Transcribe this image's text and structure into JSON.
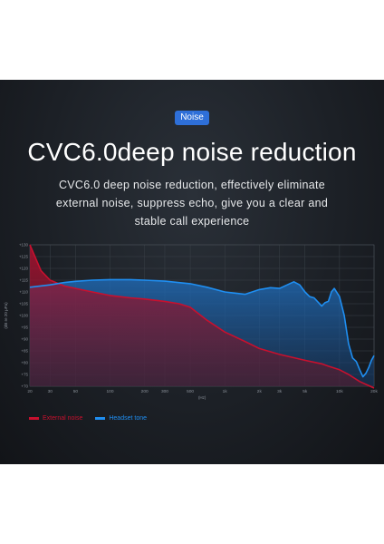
{
  "badge": "Noise",
  "headline": "CVC6.0deep noise reduction",
  "description": [
    "CVC6.0 deep noise reduction, effectively eliminate",
    "external noise, suppress echo, give you a clear and",
    "stable call experience"
  ],
  "colors": {
    "external": "#c8102e",
    "headset": "#1f8ef1",
    "badge": "#2e6fd8"
  },
  "chart_data": {
    "type": "line",
    "xscale": "log",
    "xlim": [
      20,
      20000
    ],
    "ylim": [
      70,
      130
    ],
    "xlabel": "(Hz)",
    "ylabel": "(dB re 20 μPa)",
    "x_ticks": [
      {
        "v": 20,
        "label": "20"
      },
      {
        "v": 30,
        "label": "30"
      },
      {
        "v": 50,
        "label": "50"
      },
      {
        "v": 100,
        "label": "100"
      },
      {
        "v": 200,
        "label": "200"
      },
      {
        "v": 300,
        "label": "300"
      },
      {
        "v": 500,
        "label": "500"
      },
      {
        "v": 1000,
        "label": "1k"
      },
      {
        "v": 2000,
        "label": "2k"
      },
      {
        "v": 3000,
        "label": "3k"
      },
      {
        "v": 5000,
        "label": "5k"
      },
      {
        "v": 10000,
        "label": "10k"
      },
      {
        "v": 20000,
        "label": "20k"
      }
    ],
    "y_ticks": [
      {
        "v": 130,
        "label": "+130"
      },
      {
        "v": 125,
        "label": "+125"
      },
      {
        "v": 120,
        "label": "+120"
      },
      {
        "v": 115,
        "label": "+115"
      },
      {
        "v": 110,
        "label": "+110"
      },
      {
        "v": 105,
        "label": "+105"
      },
      {
        "v": 100,
        "label": "+100"
      },
      {
        "v": 95,
        "label": "+95"
      },
      {
        "v": 90,
        "label": "+90"
      },
      {
        "v": 85,
        "label": "+85"
      },
      {
        "v": 80,
        "label": "+80"
      },
      {
        "v": 75,
        "label": "+75"
      },
      {
        "v": 70,
        "label": "+70"
      }
    ],
    "series": [
      {
        "name": "External noise",
        "color": "#c8102e",
        "points": [
          [
            20,
            130
          ],
          [
            25,
            119
          ],
          [
            30,
            115
          ],
          [
            40,
            112.5
          ],
          [
            50,
            111.5
          ],
          [
            70,
            110
          ],
          [
            100,
            108.5
          ],
          [
            150,
            107.5
          ],
          [
            200,
            107
          ],
          [
            300,
            106
          ],
          [
            400,
            105
          ],
          [
            500,
            103.5
          ],
          [
            700,
            98
          ],
          [
            1000,
            93
          ],
          [
            1500,
            89
          ],
          [
            2000,
            86
          ],
          [
            3000,
            83.5
          ],
          [
            5000,
            81
          ],
          [
            7000,
            79.5
          ],
          [
            8000,
            78.5
          ],
          [
            10000,
            77
          ],
          [
            12000,
            75
          ],
          [
            15000,
            72
          ],
          [
            20000,
            68.5
          ]
        ]
      },
      {
        "name": "Headset tone",
        "color": "#1f8ef1",
        "points": [
          [
            20,
            112
          ],
          [
            30,
            113
          ],
          [
            40,
            114
          ],
          [
            50,
            114.5
          ],
          [
            70,
            115
          ],
          [
            100,
            115.2
          ],
          [
            150,
            115.2
          ],
          [
            200,
            115
          ],
          [
            300,
            114.6
          ],
          [
            500,
            113.5
          ],
          [
            700,
            112
          ],
          [
            1000,
            110
          ],
          [
            1500,
            109
          ],
          [
            2000,
            111
          ],
          [
            2500,
            111.8
          ],
          [
            3000,
            111.5
          ],
          [
            3500,
            113
          ],
          [
            4000,
            114.3
          ],
          [
            4500,
            113
          ],
          [
            5000,
            110
          ],
          [
            5500,
            108
          ],
          [
            6000,
            107.5
          ],
          [
            7000,
            104
          ],
          [
            7500,
            105.5
          ],
          [
            8000,
            106
          ],
          [
            8500,
            110
          ],
          [
            9000,
            111.5
          ],
          [
            10000,
            108
          ],
          [
            11000,
            100
          ],
          [
            12000,
            88
          ],
          [
            13000,
            82
          ],
          [
            14000,
            80.5
          ],
          [
            15000,
            77
          ],
          [
            16000,
            74
          ],
          [
            17000,
            75.5
          ],
          [
            18000,
            78
          ],
          [
            19000,
            81
          ],
          [
            20000,
            83
          ]
        ]
      }
    ]
  }
}
